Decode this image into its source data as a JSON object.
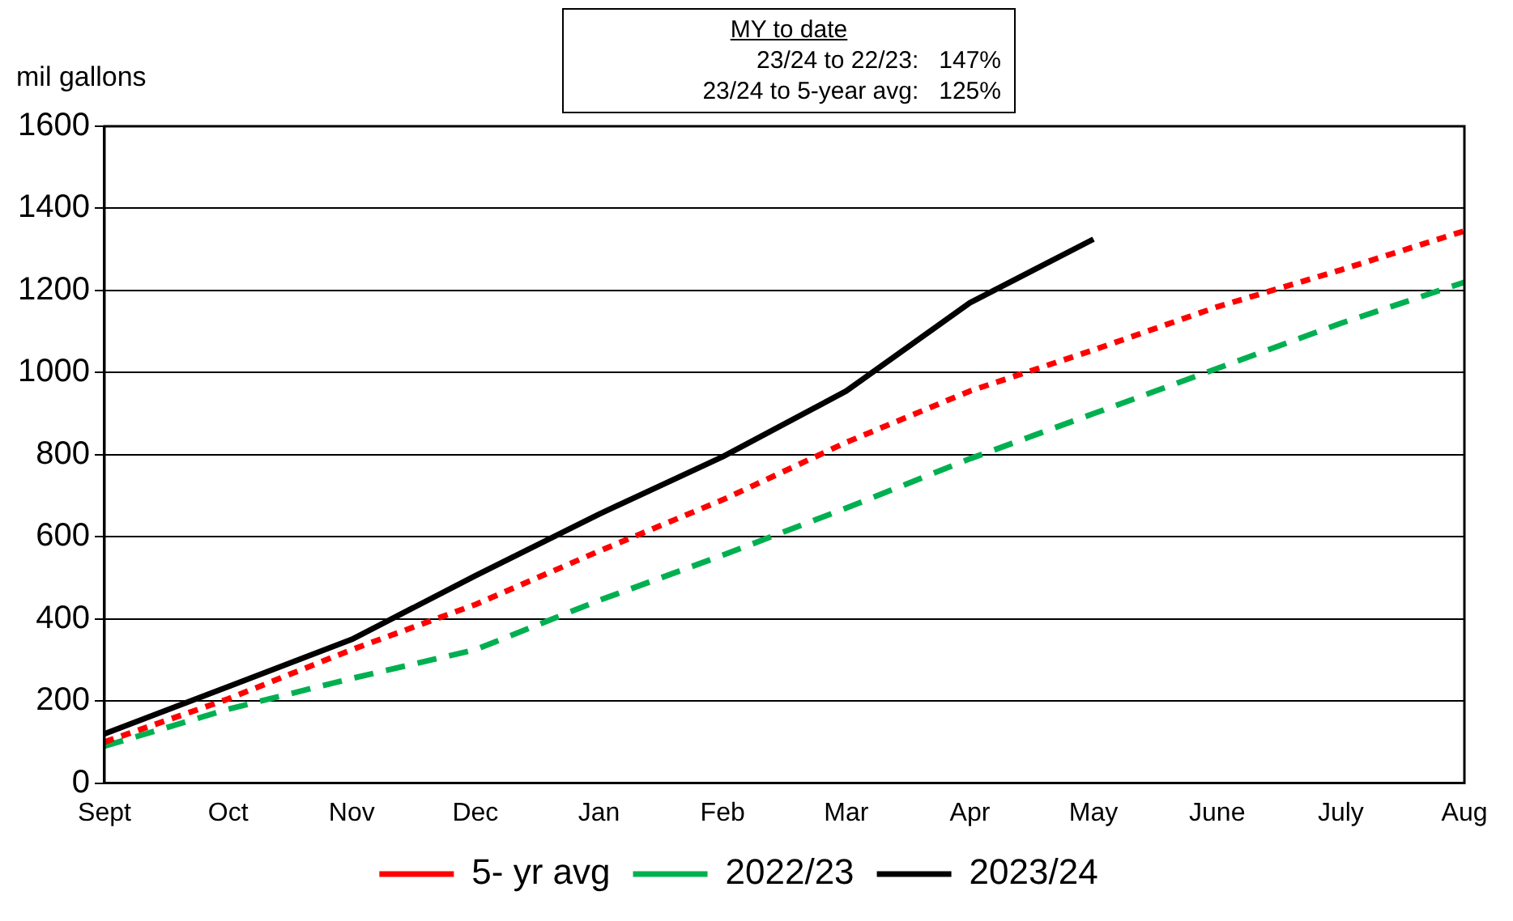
{
  "chart_data": {
    "type": "line",
    "ylabel": "mil gallons",
    "annotations": [
      "MY to date",
      "23/24 to 22/23:   147%",
      "23/24 to 5-year avg:   125%"
    ],
    "categories": [
      "Sept",
      "Oct",
      "Nov",
      "Dec",
      "Jan",
      "Feb",
      "Mar",
      "Apr",
      "May",
      "June",
      "July",
      "Aug"
    ],
    "series": [
      {
        "name": "5- yr avg",
        "color": "#ff0000",
        "line_style": "dotted",
        "values": [
          100,
          205,
          325,
          435,
          565,
          690,
          830,
          955,
          1055,
          1160,
          1250,
          1345
        ]
      },
      {
        "name": "2022/23",
        "color": "#00b050",
        "line_style": "dashed",
        "values": [
          90,
          180,
          255,
          325,
          445,
          555,
          670,
          790,
          900,
          1010,
          1120,
          1220
        ]
      },
      {
        "name": "2023/24",
        "color": "#000000",
        "line_style": "solid",
        "values": [
          120,
          235,
          350,
          505,
          655,
          795,
          955,
          1170,
          1325,
          null,
          null,
          null
        ]
      }
    ],
    "ylim": [
      0,
      1600
    ],
    "yticks": [
      0,
      200,
      400,
      600,
      800,
      1000,
      1200,
      1400,
      1600
    ],
    "grid": "y",
    "legend": "bottom",
    "marker": "none"
  }
}
